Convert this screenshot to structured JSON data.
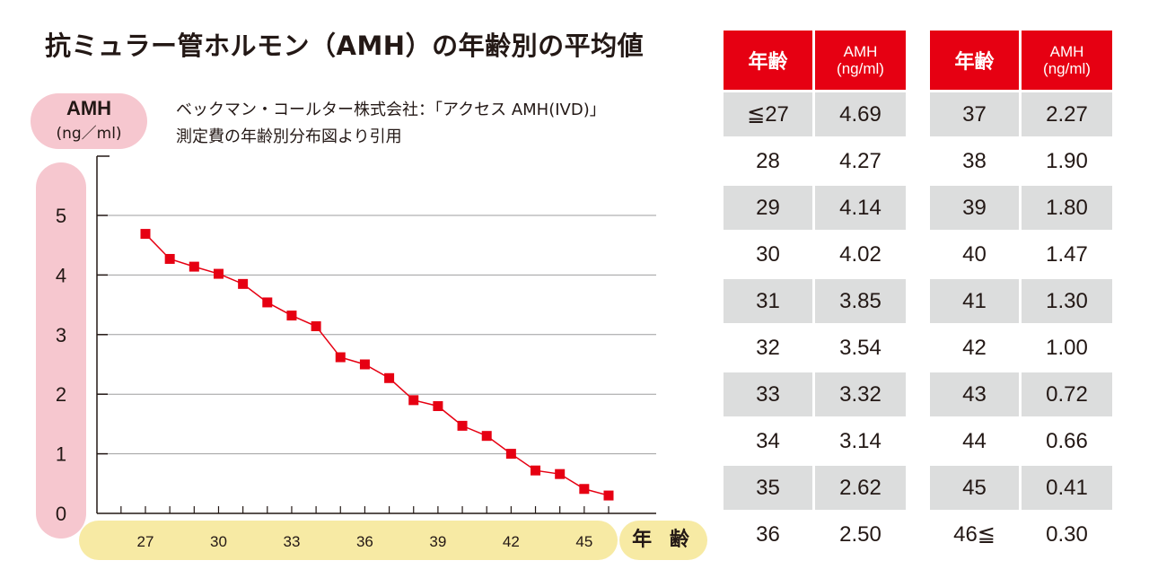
{
  "title": "抗ミュラー管ホルモン（AMH）の年齢別の平均値",
  "source": {
    "line1": "ベックマン・コールター株式会社：「アクセス AMH(IVD)」",
    "line2": "測定費の年齢別分布図より引用"
  },
  "colors": {
    "line": "#e60012",
    "marker": "#e60012",
    "header_bg": "#e60012",
    "row_gray": "#dcdddd",
    "y_pill": "#f6c7cf",
    "x_pill": "#f7eaa4"
  },
  "chart_data": {
    "type": "line",
    "title": "抗ミュラー管ホルモン（AMH）の年齢別の平均値",
    "ylabel": "AMH",
    "yunit": "(ng／ml)",
    "xlabel": "年 齢",
    "ylim": [
      0,
      5
    ],
    "yticks": [
      0,
      1,
      2,
      3,
      4,
      5
    ],
    "xlim": [
      25,
      47
    ],
    "xticks": [
      27,
      30,
      33,
      36,
      39,
      42,
      45
    ],
    "grid": "horizontal",
    "x": [
      27,
      28,
      29,
      30,
      31,
      32,
      33,
      34,
      35,
      36,
      37,
      38,
      39,
      40,
      41,
      42,
      43,
      44,
      45,
      46
    ],
    "values": [
      4.69,
      4.27,
      4.14,
      4.02,
      3.85,
      3.54,
      3.32,
      3.14,
      2.62,
      2.5,
      2.27,
      1.9,
      1.8,
      1.47,
      1.3,
      1.0,
      0.72,
      0.66,
      0.41,
      0.3
    ]
  },
  "table": {
    "header_age": "年齢",
    "header_amh": [
      "AMH",
      "(ng/ml)"
    ],
    "left": [
      [
        "≦27",
        "4.69"
      ],
      [
        "28",
        "4.27"
      ],
      [
        "29",
        "4.14"
      ],
      [
        "30",
        "4.02"
      ],
      [
        "31",
        "3.85"
      ],
      [
        "32",
        "3.54"
      ],
      [
        "33",
        "3.32"
      ],
      [
        "34",
        "3.14"
      ],
      [
        "35",
        "2.62"
      ],
      [
        "36",
        "2.50"
      ]
    ],
    "right": [
      [
        "37",
        "2.27"
      ],
      [
        "38",
        "1.90"
      ],
      [
        "39",
        "1.80"
      ],
      [
        "40",
        "1.47"
      ],
      [
        "41",
        "1.30"
      ],
      [
        "42",
        "1.00"
      ],
      [
        "43",
        "0.72"
      ],
      [
        "44",
        "0.66"
      ],
      [
        "45",
        "0.41"
      ],
      [
        "46≦",
        "0.30"
      ]
    ]
  }
}
